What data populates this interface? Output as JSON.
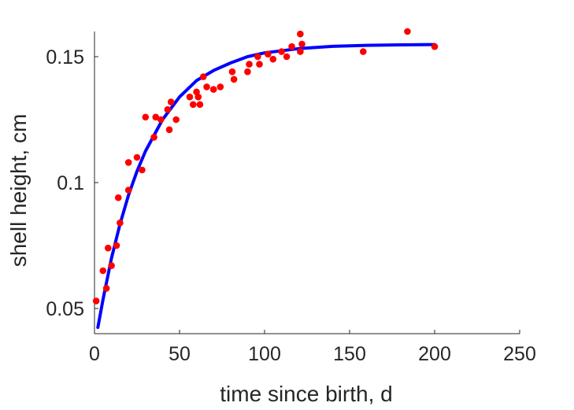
{
  "chart_data": {
    "type": "scatter",
    "title": "",
    "xlabel": "time since birth, d",
    "ylabel": "shell height, cm",
    "xlim": [
      0,
      250
    ],
    "ylim": [
      0.04,
      0.16
    ],
    "xticks": [
      "0",
      "50",
      "100",
      "150",
      "200",
      "250"
    ],
    "yticks": [
      "0.05",
      "0.1",
      "0.15"
    ],
    "grid": false,
    "legend": "none",
    "series": [
      {
        "kind": "points",
        "color": "#ff0000",
        "x": [
          1,
          5,
          7,
          8,
          10,
          13,
          14,
          15,
          20,
          20,
          25,
          28,
          30,
          35,
          36,
          39,
          43,
          44,
          45,
          48,
          56,
          58,
          60,
          61,
          62,
          64,
          66,
          70,
          74,
          81,
          82,
          90,
          91,
          96,
          97,
          102,
          105,
          110,
          113,
          116,
          121,
          121,
          122,
          158,
          184,
          200
        ],
        "y": [
          0.053,
          0.065,
          0.058,
          0.074,
          0.067,
          0.075,
          0.094,
          0.084,
          0.108,
          0.097,
          0.11,
          0.105,
          0.126,
          0.118,
          0.126,
          0.125,
          0.129,
          0.121,
          0.132,
          0.125,
          0.134,
          0.131,
          0.136,
          0.134,
          0.131,
          0.142,
          0.138,
          0.137,
          0.138,
          0.144,
          0.141,
          0.144,
          0.147,
          0.15,
          0.147,
          0.151,
          0.149,
          0.152,
          0.15,
          0.154,
          0.159,
          0.152,
          0.155,
          0.152,
          0.16,
          0.154
        ]
      },
      {
        "kind": "curve",
        "color": "#0000ff",
        "x": [
          2,
          5,
          10,
          15,
          20,
          25,
          30,
          40,
          50,
          60,
          70,
          80,
          90,
          100,
          120,
          140,
          160,
          180,
          200
        ],
        "y": [
          0.0425,
          0.0535,
          0.07,
          0.0835,
          0.095,
          0.1045,
          0.1125,
          0.125,
          0.134,
          0.1405,
          0.1445,
          0.1475,
          0.15,
          0.1515,
          0.1532,
          0.1541,
          0.1545,
          0.1547,
          0.1548
        ]
      }
    ]
  }
}
